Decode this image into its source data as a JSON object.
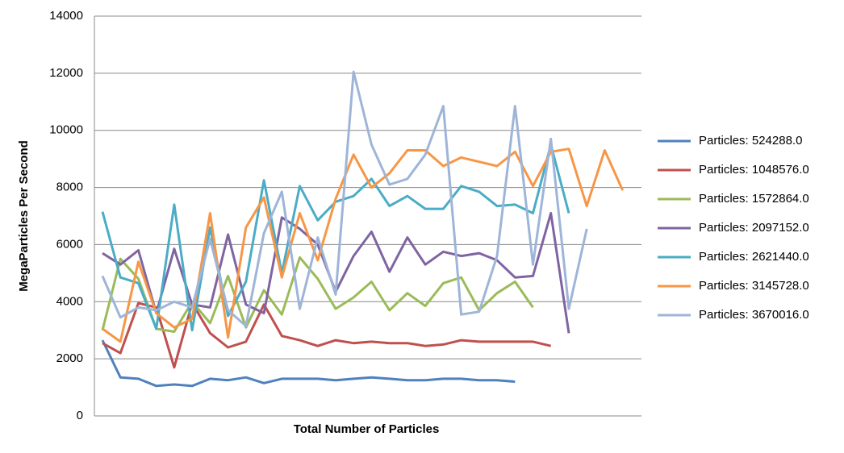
{
  "chart_data": {
    "type": "line",
    "x_label": "Total Number of Particles",
    "y_label": "MegaParticles Per Second",
    "categories": [
      null,
      null,
      null,
      null,
      null,
      null,
      null,
      null,
      null,
      null,
      null,
      null,
      null,
      null,
      null,
      null,
      null,
      null,
      null,
      null,
      null,
      null,
      null,
      null,
      null,
      null,
      null,
      null,
      null,
      null
    ],
    "ylim": [
      0,
      14000
    ],
    "yticks": [
      0,
      2000,
      4000,
      6000,
      8000,
      10000,
      12000,
      14000
    ],
    "grid": true,
    "legend": "right",
    "series": [
      {
        "name": "Particles: 524288.0",
        "color": "#4f81bd",
        "values": [
          2650,
          1350,
          1300,
          1050,
          1100,
          1050,
          1300,
          1250,
          1350,
          1150,
          1300,
          1300,
          1300,
          1250,
          1300,
          1350,
          1300,
          1250,
          1250,
          1300,
          1300,
          1250,
          1250,
          1200,
          null,
          null,
          null,
          null,
          null,
          null
        ]
      },
      {
        "name": "Particles: 1048576.0",
        "color": "#c0504d",
        "values": [
          2550,
          2200,
          3950,
          3800,
          1700,
          3950,
          2900,
          2400,
          2600,
          3900,
          2800,
          2650,
          2450,
          2650,
          2550,
          2600,
          2550,
          2550,
          2450,
          2500,
          2650,
          2600,
          2600,
          2600,
          2600,
          2450,
          null,
          null,
          null,
          null
        ]
      },
      {
        "name": "Particles: 1572864.0",
        "color": "#9bbb59",
        "values": [
          3000,
          5500,
          4800,
          3050,
          2950,
          4000,
          3250,
          4900,
          3100,
          4400,
          3550,
          5550,
          4800,
          3750,
          4150,
          4700,
          3700,
          4300,
          3850,
          4650,
          4850,
          3700,
          4300,
          4700,
          3800,
          null,
          null,
          null,
          null,
          null
        ]
      },
      {
        "name": "Particles: 2097152.0",
        "color": "#8064a2",
        "values": [
          5700,
          5300,
          5800,
          3600,
          5850,
          3900,
          3800,
          6350,
          3900,
          3600,
          6950,
          6550,
          6000,
          4350,
          5600,
          6450,
          5050,
          6250,
          5300,
          5750,
          5600,
          5700,
          5450,
          4850,
          4900,
          7100,
          2900,
          null,
          null,
          null
        ]
      },
      {
        "name": "Particles: 2621440.0",
        "color": "#4bacc6",
        "values": [
          7150,
          4850,
          4650,
          3050,
          7400,
          3000,
          6600,
          3500,
          4700,
          8250,
          5000,
          8050,
          6850,
          7500,
          7700,
          8300,
          7350,
          7700,
          7250,
          7250,
          8050,
          7850,
          7350,
          7400,
          7100,
          9500,
          7100,
          null,
          null,
          null
        ]
      },
      {
        "name": "Particles: 3145728.0",
        "color": "#f79646",
        "values": [
          3050,
          2600,
          5400,
          3600,
          3100,
          3400,
          7100,
          2750,
          6600,
          7650,
          4850,
          7100,
          5450,
          7600,
          9150,
          8000,
          8500,
          9300,
          9300,
          8750,
          9050,
          8900,
          8750,
          9250,
          8050,
          9250,
          9350,
          7350,
          9300,
          7900
        ]
      },
      {
        "name": "Particles: 3670016.0",
        "color": "#9eb5d8",
        "values": [
          4900,
          3450,
          3800,
          3700,
          4000,
          3800,
          6200,
          3700,
          3150,
          6400,
          7850,
          3750,
          6250,
          4250,
          12050,
          9500,
          8100,
          8300,
          9150,
          10850,
          3550,
          3650,
          5600,
          10850,
          5300,
          9700,
          3750,
          6550,
          null,
          null
        ]
      }
    ]
  }
}
